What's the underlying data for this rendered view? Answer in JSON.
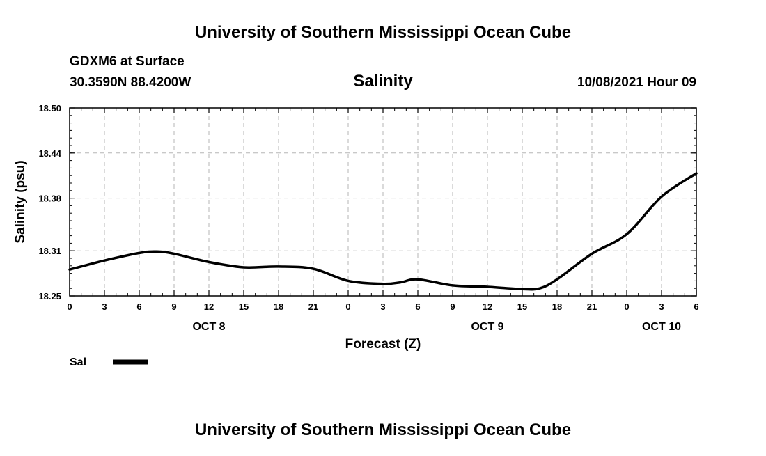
{
  "header": {
    "title": "University of Southern Mississippi Ocean Cube",
    "station": "GDXM6 at Surface",
    "coords": "30.3590N  88.4200W",
    "variable": "Salinity",
    "datetime": "10/08/2021 Hour 09"
  },
  "footer": {
    "title": "University of Southern Mississippi Ocean Cube"
  },
  "legend": {
    "label": "Sal"
  },
  "chart_data": {
    "type": "line",
    "xlabel": "Forecast (Z)",
    "ylabel": "Salinity (psu)",
    "ylim": [
      18.25,
      18.5
    ],
    "xlim": [
      0,
      54
    ],
    "grid": true,
    "legend_position": "bottom-left",
    "x_ticks": [
      0,
      3,
      6,
      9,
      12,
      15,
      18,
      21,
      24,
      27,
      30,
      33,
      36,
      39,
      42,
      45,
      48,
      51,
      54
    ],
    "x_tick_labels": [
      "0",
      "3",
      "6",
      "9",
      "12",
      "15",
      "18",
      "21",
      "0",
      "3",
      "6",
      "9",
      "12",
      "15",
      "18",
      "21",
      "0",
      "3",
      "6"
    ],
    "y_ticks": [
      18.25,
      18.31,
      18.38,
      18.44,
      18.5
    ],
    "y_tick_labels": [
      "18.25",
      "18.31",
      "18.38",
      "18.44",
      "18.50"
    ],
    "day_labels": [
      {
        "x": 12,
        "label": "OCT 8"
      },
      {
        "x": 36,
        "label": "OCT 9"
      },
      {
        "x": 51,
        "label": "OCT 10"
      }
    ],
    "series": [
      {
        "name": "Sal",
        "color": "#000000",
        "x": [
          0,
          3,
          6,
          7.5,
          9,
          12,
          15,
          18,
          21,
          24,
          27,
          28.5,
          30,
          33,
          36,
          39,
          40.5,
          42,
          45,
          48,
          51,
          54
        ],
        "y": [
          18.285,
          18.297,
          18.307,
          18.309,
          18.306,
          18.295,
          18.288,
          18.289,
          18.286,
          18.27,
          18.266,
          18.268,
          18.272,
          18.264,
          18.262,
          18.259,
          18.26,
          18.272,
          18.306,
          18.332,
          18.382,
          18.413
        ]
      }
    ]
  }
}
